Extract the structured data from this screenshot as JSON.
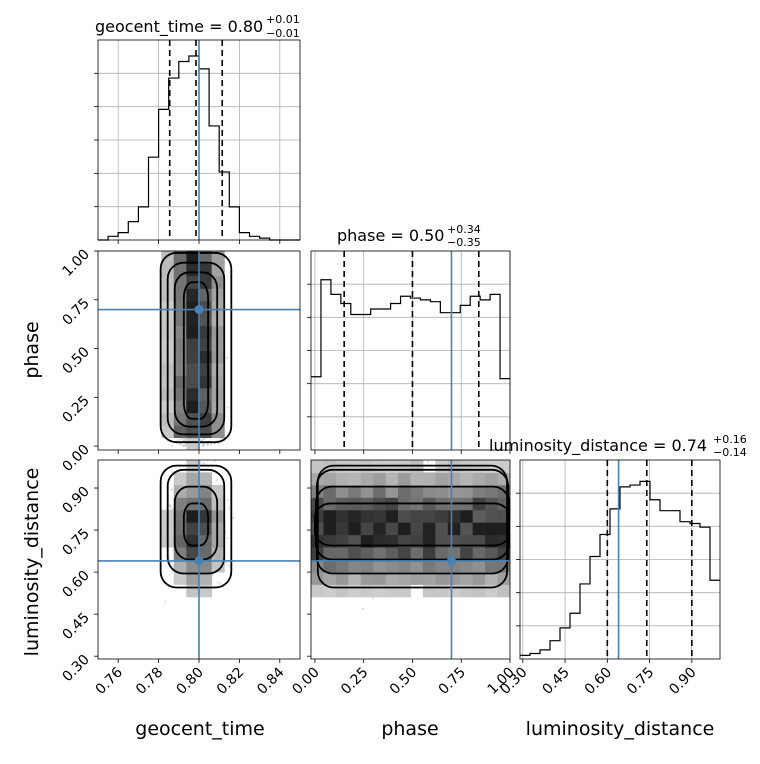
{
  "chart_data": {
    "type": "corner",
    "parameters": [
      "geocent_time",
      "phase",
      "luminosity_distance"
    ],
    "titles": {
      "geocent_time": {
        "name": "geocent_time",
        "median": "0.80",
        "plus": "+0.01",
        "minus": "−0.01"
      },
      "phase": {
        "name": "phase",
        "median": "0.50",
        "plus": "+0.34",
        "minus": "−0.35"
      },
      "luminosity_distance": {
        "name": "luminosity_distance",
        "median": "0.74",
        "plus": "+0.16",
        "minus": "−0.14"
      }
    },
    "ranges": {
      "geocent_time": [
        0.75,
        0.85
      ],
      "phase": [
        -0.02,
        1.0
      ],
      "luminosity_distance": [
        0.29,
        1.0
      ]
    },
    "ticks": {
      "geocent_time": [
        0.76,
        0.78,
        0.8,
        0.82,
        0.84
      ],
      "phase": [
        0.0,
        0.25,
        0.5,
        0.75,
        1.0
      ],
      "luminosity_distance": [
        0.3,
        0.45,
        0.6,
        0.75,
        0.9
      ]
    },
    "tick_labels": {
      "geocent_time": [
        "0.76",
        "0.78",
        "0.80",
        "0.82",
        "0.84"
      ],
      "phase": [
        "0.00",
        "0.25",
        "0.50",
        "0.75",
        "1.00"
      ],
      "luminosity_distance": [
        "0.30",
        "0.45",
        "0.60",
        "0.75",
        "0.90"
      ]
    },
    "axis_labels": {
      "geocent_time": "geocent_time",
      "phase": "phase",
      "luminosity_distance": "luminosity_distance"
    },
    "truths": {
      "geocent_time": 0.8,
      "phase": 0.7,
      "luminosity_distance": 0.64
    },
    "quantiles": {
      "geocent_time": [
        0.7855,
        0.7985,
        0.8115
      ],
      "phase": [
        0.15,
        0.5,
        0.84
      ],
      "luminosity_distance": [
        0.6,
        0.74,
        0.9
      ]
    },
    "histograms": {
      "geocent_time": {
        "edges_start": 0.75,
        "bin_width": 0.005,
        "counts": [
          0,
          0.02,
          0.04,
          0.1,
          0.18,
          0.45,
          0.71,
          0.88,
          0.97,
          1.0,
          0.93,
          0.62,
          0.37,
          0.18,
          0.04,
          0.02,
          0.01,
          0,
          0,
          0
        ]
      },
      "phase": {
        "edges_start": -0.02,
        "bin_width": 0.051,
        "counts": [
          0.4,
          0.93,
          0.85,
          0.8,
          0.74,
          0.74,
          0.77,
          0.77,
          0.8,
          0.84,
          0.83,
          0.82,
          0.81,
          0.75,
          0.75,
          0.79,
          0.84,
          0.82,
          0.85,
          0.39
        ]
      },
      "luminosity_distance": {
        "edges_start": 0.29,
        "bin_width": 0.0355,
        "counts": [
          0.02,
          0.03,
          0.05,
          0.1,
          0.17,
          0.25,
          0.41,
          0.56,
          0.68,
          0.82,
          0.94,
          0.95,
          0.97,
          0.87,
          0.81,
          0.81,
          0.75,
          0.74,
          0.72,
          0.43
        ]
      }
    },
    "scatter_levels": [
      "0.5 sigma",
      "1 sigma",
      "1.5 sigma",
      "2 sigma"
    ],
    "grid": true,
    "colors": {
      "truth": "#4682b4",
      "contour": "#000000",
      "points": "#808080"
    }
  }
}
